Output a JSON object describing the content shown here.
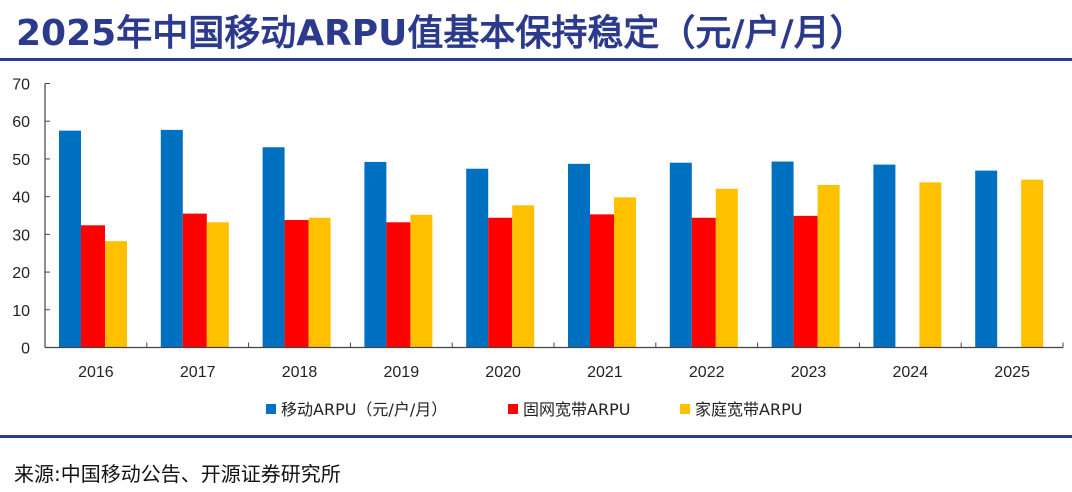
{
  "title": "2025年中国移动ARPU值基本保持稳定（元/户/月）",
  "source": "来源:中国移动公告、开源证券研究所",
  "chart_data": {
    "type": "bar",
    "title": "2025年中国移动ARPU值基本保持稳定（元/户/月）",
    "categories": [
      "2016",
      "2017",
      "2018",
      "2019",
      "2020",
      "2021",
      "2022",
      "2023",
      "2024",
      "2025"
    ],
    "ylim": [
      0,
      70
    ],
    "yticks": [
      0,
      10,
      20,
      30,
      40,
      50,
      60,
      70
    ],
    "grid": false,
    "legend": "bottom",
    "series": [
      {
        "name": "移动ARPU（元/户/月）",
        "color": "#0070c0",
        "values": [
          57.5,
          57.7,
          53.1,
          49.2,
          47.4,
          48.7,
          49.0,
          49.3,
          48.5,
          46.9
        ]
      },
      {
        "name": "固网宽带ARPU",
        "color": "#ff0000",
        "values": [
          32.4,
          35.5,
          33.8,
          33.2,
          34.4,
          35.3,
          34.4,
          34.9,
          null,
          null
        ]
      },
      {
        "name": "家庭宽带ARPU",
        "color": "#ffc000",
        "values": [
          28.2,
          33.2,
          34.4,
          35.2,
          37.7,
          39.8,
          42.1,
          43.1,
          43.8,
          44.5
        ]
      }
    ]
  }
}
